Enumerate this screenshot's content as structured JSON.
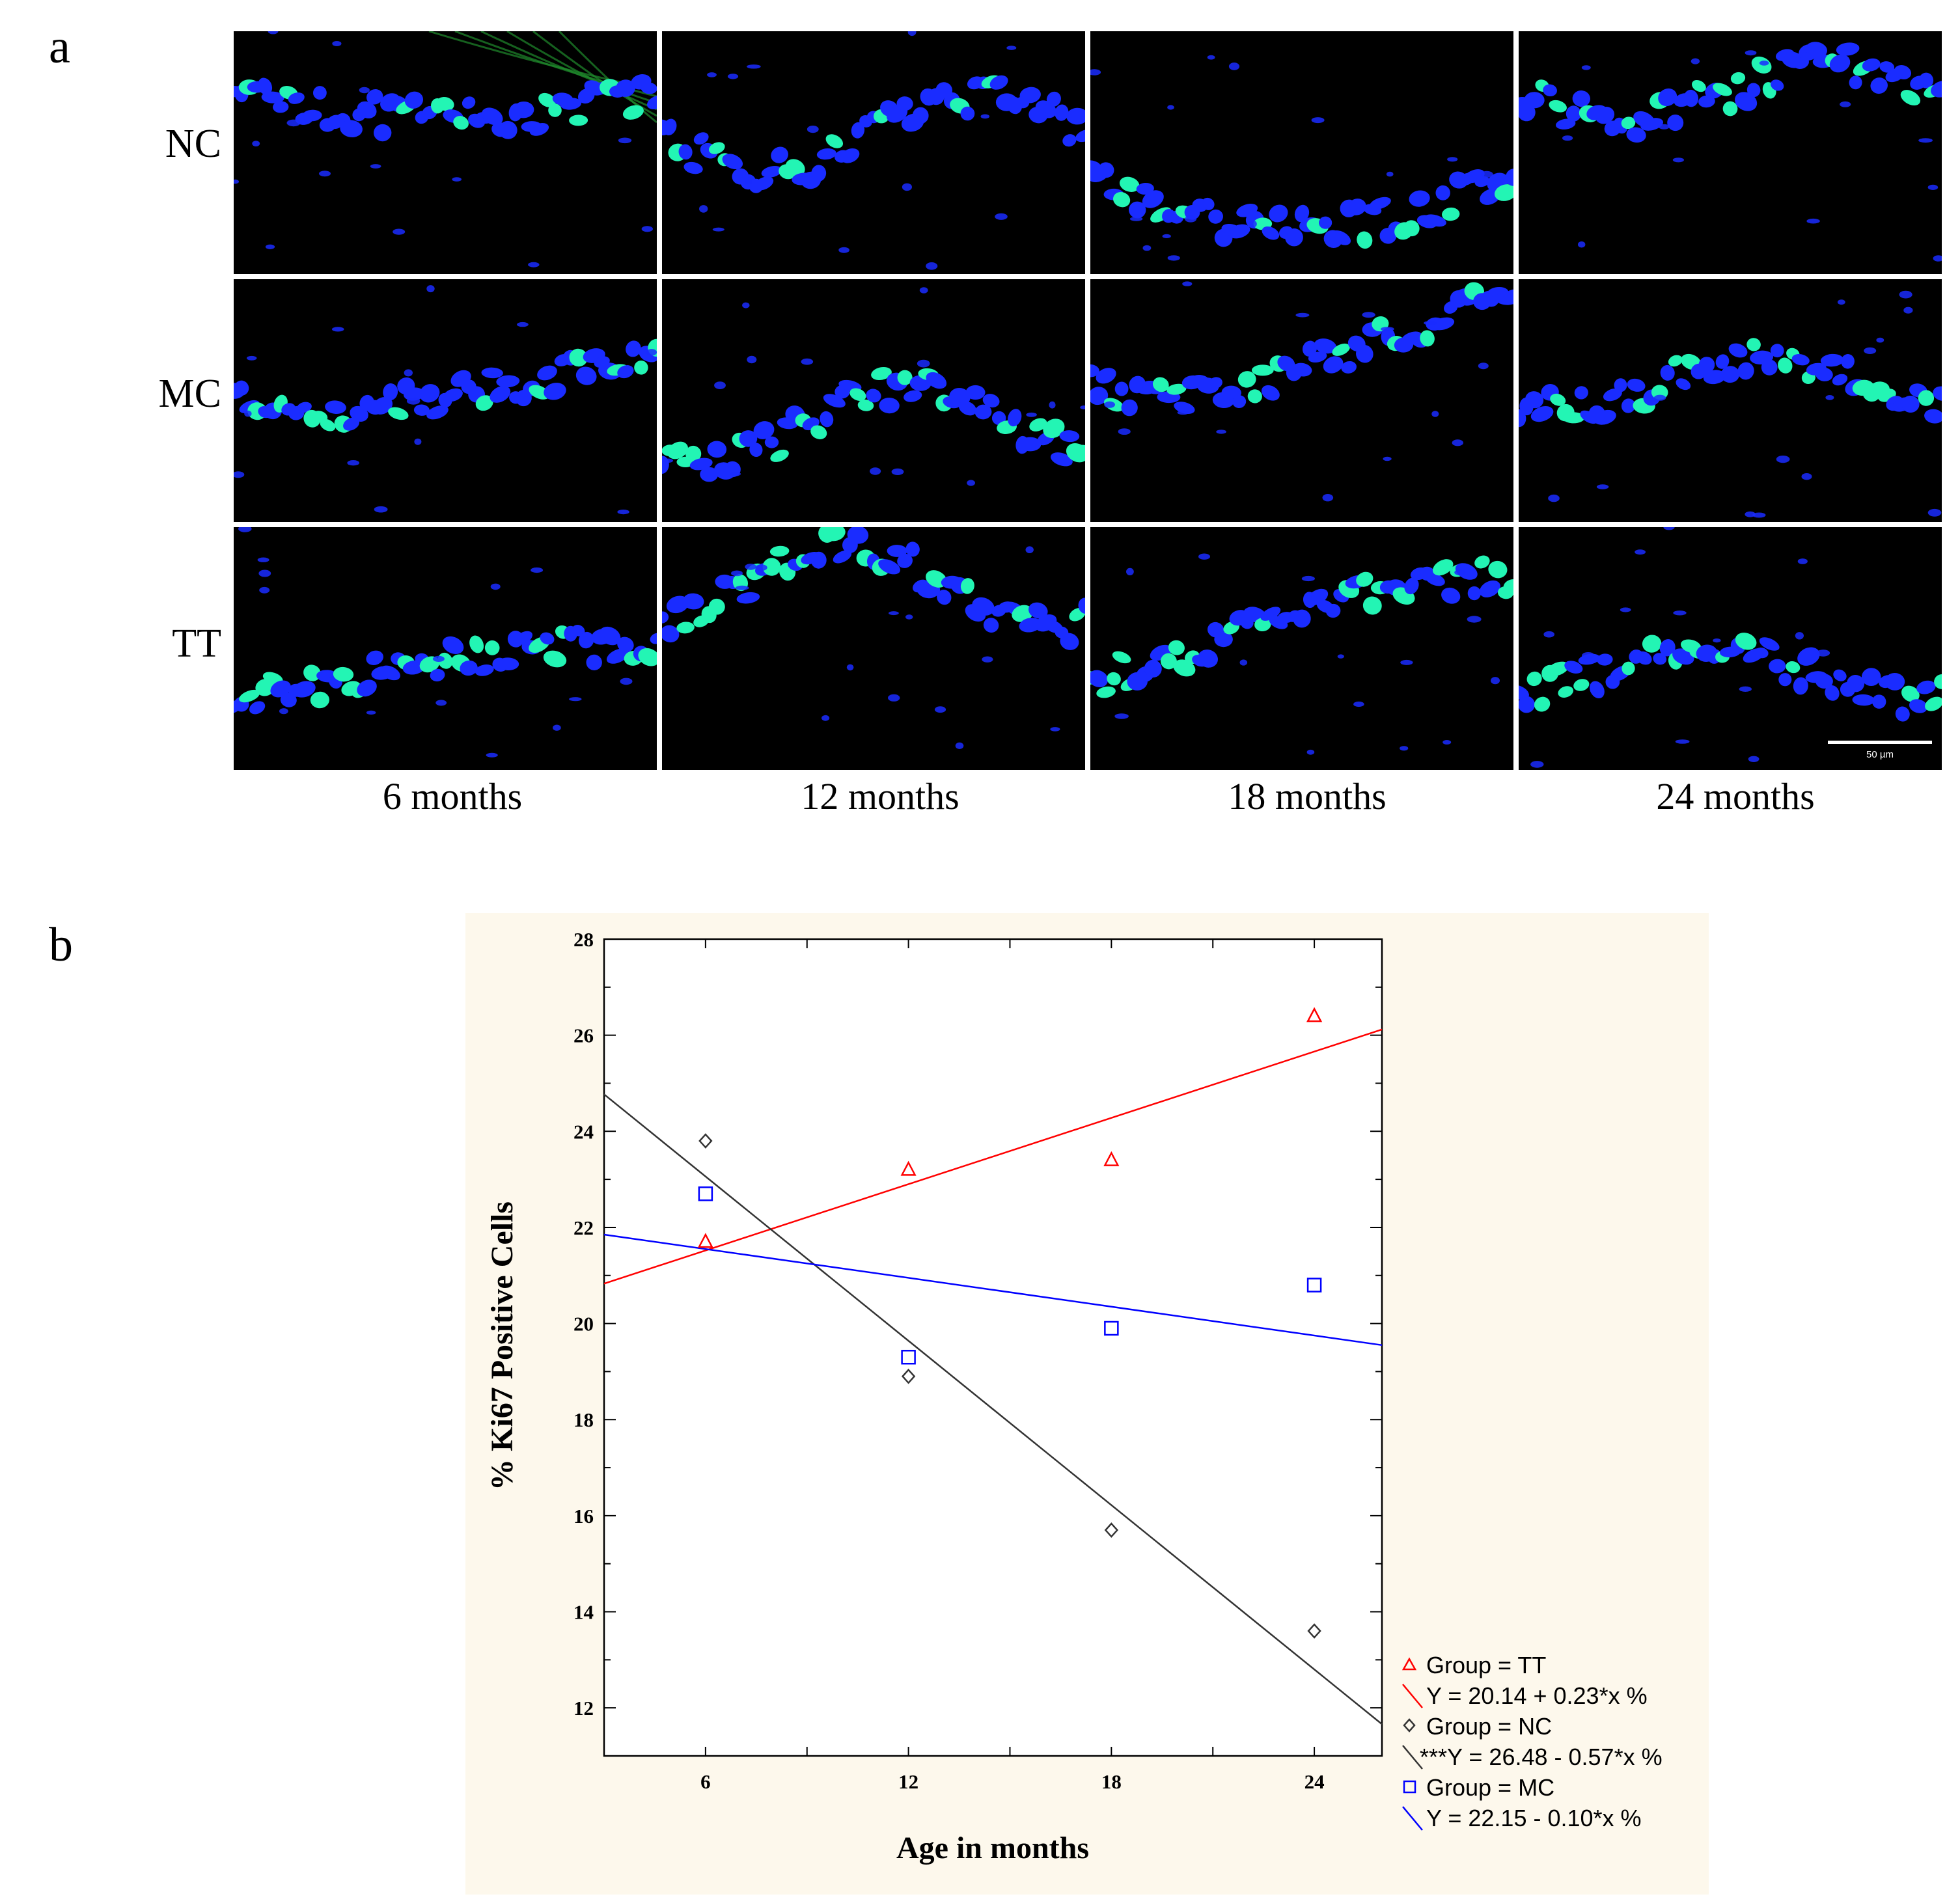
{
  "panels": {
    "a_label": "a",
    "b_label": "b"
  },
  "micrographs": {
    "rows": [
      "NC",
      "MC",
      "TT"
    ],
    "columns": [
      "6 months",
      "12 months",
      "18 months",
      "24 months"
    ],
    "scale_bar_label": "50 µm",
    "colors": {
      "nucleus": "#1a2cff",
      "ki67_positive": "#23f5b4",
      "background": "#000000",
      "fibre": "#1f8a2c"
    }
  },
  "chart_data": {
    "type": "scatter",
    "xlabel": "Age in months",
    "ylabel": "% Ki67 Positive Cells",
    "xlim": [
      3,
      26
    ],
    "ylim": [
      11,
      28
    ],
    "xticks": [
      6,
      12,
      18,
      24
    ],
    "yticks": [
      12,
      14,
      16,
      18,
      20,
      22,
      24,
      26,
      28
    ],
    "grid": false,
    "legend_position": "bottom-right, outside plot",
    "series": [
      {
        "name": "Group = TT",
        "marker": "triangle",
        "color": "#ff0000",
        "x": [
          6,
          12,
          18,
          24
        ],
        "y": [
          21.7,
          23.2,
          23.4,
          26.4
        ],
        "fit_label": "Y = 20.14 + 0.23*x %",
        "fit": {
          "intercept": 20.14,
          "slope": 0.23
        }
      },
      {
        "name": "Group = NC",
        "marker": "diamond",
        "color": "#333333",
        "x": [
          6,
          12,
          18,
          24
        ],
        "y": [
          23.8,
          18.9,
          15.7,
          13.6
        ],
        "fit_label": "***Y = 26.48 - 0.57*x %",
        "fit": {
          "intercept": 26.48,
          "slope": -0.57
        }
      },
      {
        "name": "Group = MC",
        "marker": "square",
        "color": "#0000ff",
        "x": [
          6,
          12,
          18,
          24
        ],
        "y": [
          22.7,
          19.3,
          19.9,
          20.8
        ],
        "fit_label": "Y = 22.15 - 0.10*x %",
        "fit": {
          "intercept": 22.15,
          "slope": -0.1
        }
      }
    ]
  }
}
